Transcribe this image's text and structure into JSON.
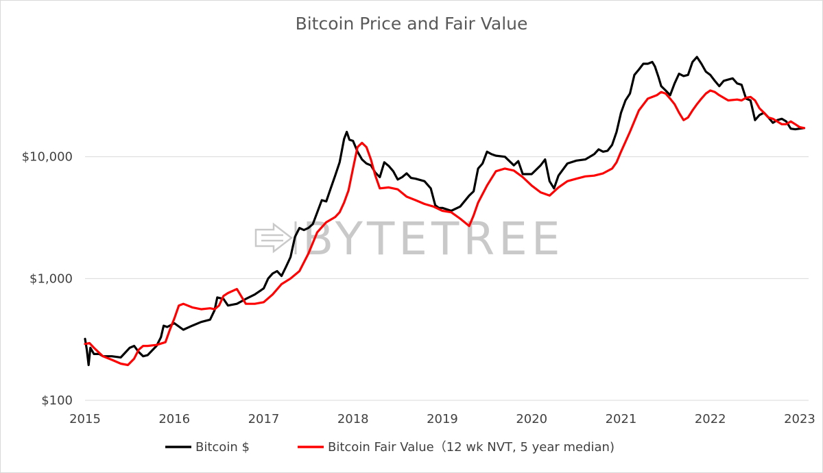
{
  "chart_data": {
    "type": "line",
    "title": "Bitcoin Price and Fair Value",
    "xlabel": "",
    "ylabel": "",
    "y_scale": "log",
    "ylim": [
      100,
      100000
    ],
    "xlim": [
      2015,
      2023.1
    ],
    "grid": "horizontal",
    "legend_position": "bottom",
    "y_ticks": [
      {
        "value": 100,
        "label": "$100"
      },
      {
        "value": 1000,
        "label": "$1,000"
      },
      {
        "value": 10000,
        "label": "$10,000"
      }
    ],
    "x_ticks": [
      {
        "value": 2015,
        "label": "2015"
      },
      {
        "value": 2016,
        "label": "2016"
      },
      {
        "value": 2017,
        "label": "2017"
      },
      {
        "value": 2018,
        "label": "2018"
      },
      {
        "value": 2019,
        "label": "2019"
      },
      {
        "value": 2020,
        "label": "2020"
      },
      {
        "value": 2021,
        "label": "2021"
      },
      {
        "value": 2022,
        "label": "2022"
      },
      {
        "value": 2023,
        "label": "2023"
      }
    ],
    "series": [
      {
        "name": "Bitcoin $",
        "color": "#000000",
        "x": [
          2015.0,
          2015.02,
          2015.04,
          2015.06,
          2015.1,
          2015.16,
          2015.2,
          2015.3,
          2015.4,
          2015.5,
          2015.55,
          2015.6,
          2015.65,
          2015.7,
          2015.8,
          2015.85,
          2015.88,
          2015.92,
          2016.0,
          2016.1,
          2016.2,
          2016.3,
          2016.4,
          2016.45,
          2016.48,
          2016.55,
          2016.6,
          2016.7,
          2016.8,
          2016.9,
          2017.0,
          2017.05,
          2017.1,
          2017.15,
          2017.2,
          2017.25,
          2017.3,
          2017.35,
          2017.4,
          2017.45,
          2017.5,
          2017.55,
          2017.6,
          2017.65,
          2017.7,
          2017.75,
          2017.8,
          2017.85,
          2017.9,
          2017.93,
          2017.96,
          2018.0,
          2018.05,
          2018.1,
          2018.15,
          2018.2,
          2018.25,
          2018.3,
          2018.35,
          2018.4,
          2018.45,
          2018.5,
          2018.55,
          2018.6,
          2018.65,
          2018.7,
          2018.8,
          2018.87,
          2018.92,
          2018.96,
          2019.0,
          2019.1,
          2019.2,
          2019.3,
          2019.35,
          2019.4,
          2019.45,
          2019.5,
          2019.55,
          2019.6,
          2019.7,
          2019.8,
          2019.85,
          2019.9,
          2020.0,
          2020.1,
          2020.15,
          2020.2,
          2020.25,
          2020.3,
          2020.4,
          2020.5,
          2020.6,
          2020.7,
          2020.75,
          2020.8,
          2020.85,
          2020.9,
          2020.95,
          2021.0,
          2021.05,
          2021.1,
          2021.15,
          2021.2,
          2021.25,
          2021.3,
          2021.35,
          2021.38,
          2021.42,
          2021.45,
          2021.5,
          2021.55,
          2021.6,
          2021.65,
          2021.7,
          2021.75,
          2021.8,
          2021.85,
          2021.9,
          2021.95,
          2022.0,
          2022.05,
          2022.1,
          2022.15,
          2022.2,
          2022.25,
          2022.3,
          2022.35,
          2022.4,
          2022.45,
          2022.5,
          2022.55,
          2022.6,
          2022.65,
          2022.7,
          2022.75,
          2022.8,
          2022.85,
          2022.9,
          2022.95,
          2023.0,
          2023.05
        ],
        "y": [
          320,
          260,
          195,
          270,
          240,
          240,
          230,
          230,
          225,
          270,
          280,
          250,
          230,
          235,
          280,
          330,
          410,
          400,
          430,
          380,
          410,
          440,
          460,
          550,
          700,
          680,
          600,
          620,
          680,
          740,
          830,
          1000,
          1100,
          1150,
          1050,
          1250,
          1500,
          2200,
          2600,
          2500,
          2600,
          2800,
          3500,
          4400,
          4300,
          5500,
          7000,
          9000,
          14000,
          16000,
          13800,
          13500,
          11000,
          9500,
          8800,
          8500,
          7400,
          6800,
          9000,
          8400,
          7600,
          6500,
          6800,
          7300,
          6700,
          6600,
          6300,
          5500,
          4000,
          3800,
          3800,
          3600,
          3900,
          4800,
          5200,
          8000,
          8800,
          11000,
          10500,
          10200,
          10000,
          8500,
          9200,
          7200,
          7200,
          8500,
          9500,
          6300,
          5500,
          7000,
          8800,
          9300,
          9500,
          10500,
          11500,
          11000,
          11200,
          12500,
          16000,
          23000,
          29000,
          33000,
          47000,
          52000,
          58000,
          58000,
          60000,
          55000,
          45000,
          38000,
          35000,
          32000,
          40000,
          48000,
          46000,
          47000,
          60000,
          66000,
          58000,
          50000,
          47000,
          42000,
          38000,
          42000,
          43000,
          44000,
          40000,
          39000,
          30000,
          29000,
          20000,
          22000,
          23000,
          21000,
          19000,
          20000,
          20500,
          19500,
          17000,
          16800,
          17000,
          17200
        ]
      },
      {
        "name": "Bitcoin Fair Value（12 wk NVT, 5 year median)",
        "color": "#ff0000",
        "x": [
          2015.0,
          2015.05,
          2015.1,
          2015.2,
          2015.3,
          2015.4,
          2015.48,
          2015.55,
          2015.6,
          2015.65,
          2015.7,
          2015.8,
          2015.9,
          2015.95,
          2016.0,
          2016.05,
          2016.1,
          2016.2,
          2016.3,
          2016.4,
          2016.45,
          2016.5,
          2016.55,
          2016.6,
          2016.7,
          2016.8,
          2016.9,
          2017.0,
          2017.1,
          2017.2,
          2017.3,
          2017.4,
          2017.5,
          2017.6,
          2017.7,
          2017.8,
          2017.85,
          2017.9,
          2017.95,
          2018.0,
          2018.05,
          2018.1,
          2018.15,
          2018.2,
          2018.25,
          2018.3,
          2018.4,
          2018.5,
          2018.6,
          2018.7,
          2018.8,
          2018.9,
          2019.0,
          2019.1,
          2019.2,
          2019.25,
          2019.3,
          2019.35,
          2019.4,
          2019.5,
          2019.6,
          2019.7,
          2019.8,
          2019.9,
          2020.0,
          2020.1,
          2020.2,
          2020.3,
          2020.4,
          2020.5,
          2020.6,
          2020.7,
          2020.8,
          2020.9,
          2020.95,
          2021.0,
          2021.1,
          2021.2,
          2021.3,
          2021.35,
          2021.4,
          2021.45,
          2021.5,
          2021.55,
          2021.6,
          2021.65,
          2021.7,
          2021.75,
          2021.8,
          2021.85,
          2021.9,
          2021.95,
          2022.0,
          2022.05,
          2022.1,
          2022.2,
          2022.3,
          2022.35,
          2022.4,
          2022.45,
          2022.5,
          2022.55,
          2022.6,
          2022.65,
          2022.7,
          2022.8,
          2022.85,
          2022.9,
          2022.95,
          2023.0,
          2023.05
        ],
        "y": [
          290,
          295,
          270,
          230,
          215,
          200,
          195,
          220,
          260,
          280,
          280,
          285,
          300,
          380,
          470,
          600,
          620,
          580,
          560,
          570,
          560,
          600,
          720,
          760,
          820,
          620,
          620,
          640,
          740,
          900,
          1000,
          1150,
          1600,
          2400,
          2900,
          3200,
          3500,
          4200,
          5300,
          8000,
          12000,
          13000,
          12000,
          9500,
          7000,
          5500,
          5600,
          5400,
          4700,
          4400,
          4100,
          3900,
          3600,
          3500,
          3100,
          2900,
          2700,
          3300,
          4200,
          5800,
          7600,
          8000,
          7700,
          6800,
          5800,
          5100,
          4800,
          5600,
          6300,
          6600,
          6900,
          7000,
          7300,
          8000,
          9000,
          11000,
          16000,
          24000,
          30000,
          31000,
          32000,
          34000,
          33000,
          30000,
          27000,
          23000,
          20000,
          21000,
          24000,
          27000,
          30000,
          33000,
          35000,
          34000,
          32000,
          29000,
          29500,
          29000,
          30500,
          31000,
          29000,
          25000,
          23000,
          21000,
          20500,
          18500,
          18500,
          19500,
          18500,
          17500,
          17200
        ]
      }
    ]
  },
  "watermark": {
    "text": "BYTETREE",
    "icon": "bytetree-logo-icon"
  }
}
